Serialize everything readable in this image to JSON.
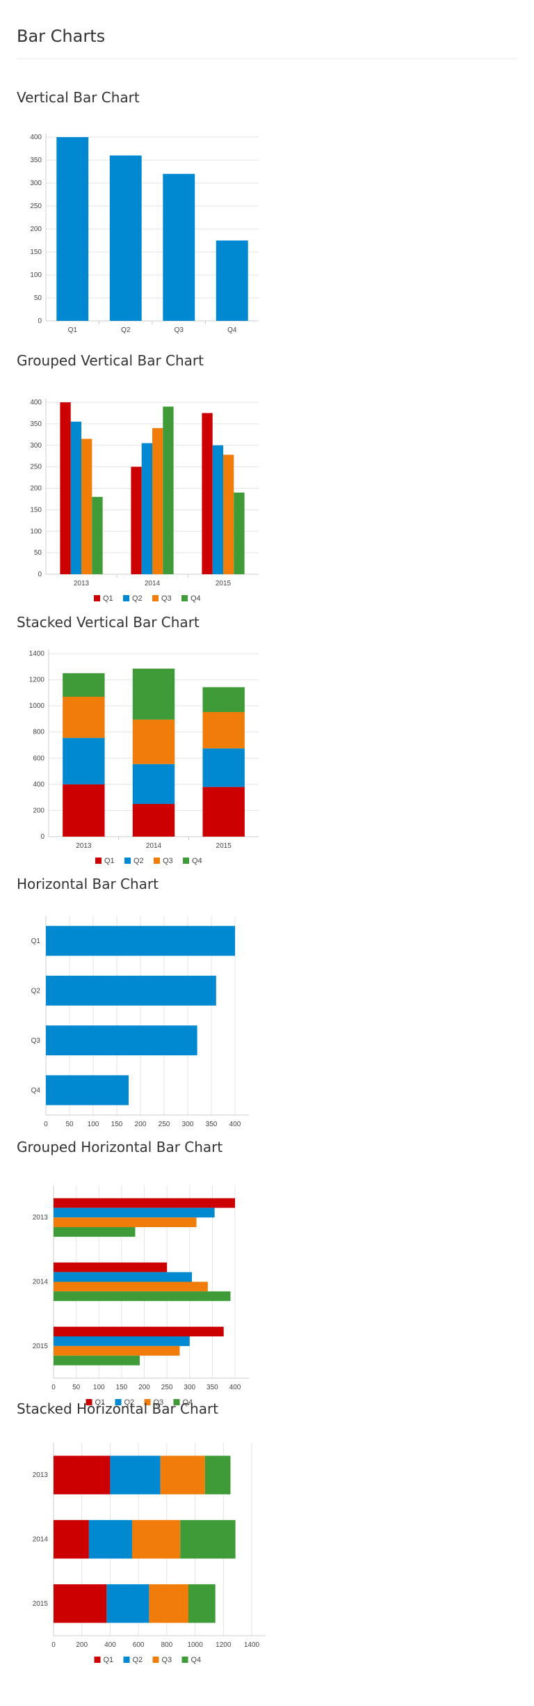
{
  "page": {
    "title": "Bar Charts"
  },
  "colors": {
    "Q1": "#cc0000",
    "Q2": "#0088d1",
    "Q3": "#f07c0a",
    "Q4": "#3e9b37",
    "grid": "#e3e3e3",
    "axis": "#cccccc",
    "text": "#444444"
  },
  "charts": [
    {
      "heading": "Vertical Bar Chart"
    },
    {
      "heading": "Grouped Vertical Bar Chart"
    },
    {
      "heading": "Stacked Vertical Bar Chart"
    },
    {
      "heading": "Horizontal Bar Chart"
    },
    {
      "heading": "Grouped Horizontal Bar Chart"
    },
    {
      "heading": "Stacked Horizontal Bar Chart"
    }
  ],
  "chart_data": [
    {
      "type": "bar",
      "orientation": "vertical",
      "mode": "simple",
      "title": "Vertical Bar Chart",
      "categories": [
        "Q1",
        "Q2",
        "Q3",
        "Q4"
      ],
      "values": [
        400,
        360,
        320,
        175
      ],
      "ylim": [
        0,
        400
      ],
      "yticks": [
        0,
        50,
        100,
        150,
        200,
        250,
        300,
        350,
        400
      ],
      "grid": true,
      "legend": "none"
    },
    {
      "type": "bar",
      "orientation": "vertical",
      "mode": "grouped",
      "title": "Grouped Vertical Bar Chart",
      "categories": [
        "2013",
        "2014",
        "2015"
      ],
      "series": [
        {
          "name": "Q1",
          "values": [
            400,
            250,
            375
          ]
        },
        {
          "name": "Q2",
          "values": [
            355,
            305,
            300
          ]
        },
        {
          "name": "Q3",
          "values": [
            315,
            340,
            278
          ]
        },
        {
          "name": "Q4",
          "values": [
            180,
            390,
            190
          ]
        }
      ],
      "ylim": [
        0,
        400
      ],
      "yticks": [
        0,
        50,
        100,
        150,
        200,
        250,
        300,
        350,
        400
      ],
      "grid": true,
      "legend": "bottom"
    },
    {
      "type": "bar",
      "orientation": "vertical",
      "mode": "stacked",
      "title": "Stacked Vertical Bar Chart",
      "categories": [
        "2013",
        "2014",
        "2015"
      ],
      "series": [
        {
          "name": "Q1",
          "values": [
            400,
            250,
            380
          ]
        },
        {
          "name": "Q2",
          "values": [
            355,
            305,
            295
          ]
        },
        {
          "name": "Q3",
          "values": [
            315,
            340,
            278
          ]
        },
        {
          "name": "Q4",
          "values": [
            180,
            390,
            190
          ]
        }
      ],
      "ylim": [
        0,
        1400
      ],
      "yticks": [
        0,
        200,
        400,
        600,
        800,
        1000,
        1200,
        1400
      ],
      "grid": true,
      "legend": "bottom"
    },
    {
      "type": "bar",
      "orientation": "horizontal",
      "mode": "simple",
      "title": "Horizontal Bar Chart",
      "categories": [
        "Q1",
        "Q2",
        "Q3",
        "Q4"
      ],
      "values": [
        400,
        360,
        320,
        175
      ],
      "xlim": [
        0,
        400
      ],
      "xticks": [
        0,
        50,
        100,
        150,
        200,
        250,
        300,
        350,
        400
      ],
      "grid": true,
      "legend": "none"
    },
    {
      "type": "bar",
      "orientation": "horizontal",
      "mode": "grouped",
      "title": "Grouped Horizontal Bar Chart",
      "categories": [
        "2013",
        "2014",
        "2015"
      ],
      "series": [
        {
          "name": "Q1",
          "values": [
            400,
            250,
            375
          ]
        },
        {
          "name": "Q2",
          "values": [
            355,
            305,
            300
          ]
        },
        {
          "name": "Q3",
          "values": [
            315,
            340,
            278
          ]
        },
        {
          "name": "Q4",
          "values": [
            180,
            390,
            190
          ]
        }
      ],
      "xlim": [
        0,
        400
      ],
      "xticks": [
        0,
        50,
        100,
        150,
        200,
        250,
        300,
        350,
        400
      ],
      "grid": true,
      "legend": "bottom"
    },
    {
      "type": "bar",
      "orientation": "horizontal",
      "mode": "stacked",
      "title": "Stacked Horizontal Bar Chart",
      "categories": [
        "2013",
        "2014",
        "2015"
      ],
      "series": [
        {
          "name": "Q1",
          "values": [
            400,
            250,
            375
          ]
        },
        {
          "name": "Q2",
          "values": [
            355,
            305,
            300
          ]
        },
        {
          "name": "Q3",
          "values": [
            315,
            340,
            278
          ]
        },
        {
          "name": "Q4",
          "values": [
            180,
            390,
            190
          ]
        }
      ],
      "xlim": [
        0,
        1400
      ],
      "xticks": [
        0,
        200,
        400,
        600,
        800,
        1000,
        1200,
        1400
      ],
      "grid": true,
      "legend": "bottom"
    }
  ]
}
